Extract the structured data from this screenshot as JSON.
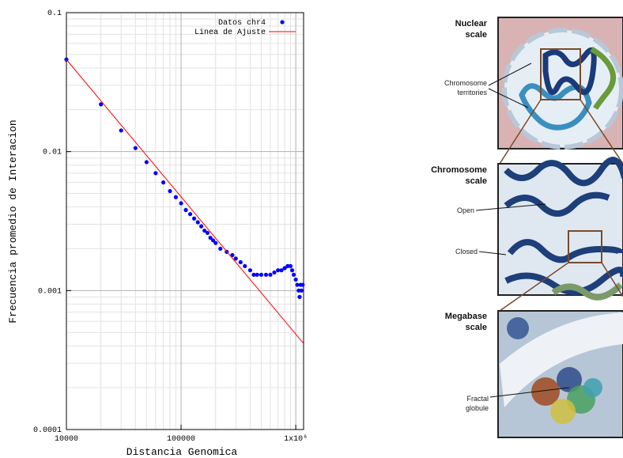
{
  "chart_data": {
    "type": "scatter",
    "x_label": "Distancia Genomica",
    "y_label": "Frecuencia promedio de Interacion",
    "log_x": true,
    "log_y": true,
    "grid": true,
    "legend": "upper right",
    "xlim": [
      10000,
      1170000
    ],
    "ylim": [
      0.0001,
      0.1
    ],
    "xticks": [
      10000,
      100000,
      {
        "value": 1000000,
        "label": "1x10⁶"
      }
    ],
    "yticks": [
      0.0001,
      0.001,
      0.01,
      0.1
    ],
    "xminorticks": [
      20000,
      30000,
      40000,
      50000,
      60000,
      70000,
      80000,
      90000,
      200000,
      300000,
      400000,
      500000,
      600000,
      700000,
      800000,
      900000
    ],
    "yminorticks": [
      0.0002,
      0.0003,
      0.0004,
      0.0005,
      0.0006,
      0.0007,
      0.0008,
      0.0009,
      0.002,
      0.003,
      0.004,
      0.005,
      0.006,
      0.007,
      0.008,
      0.009,
      0.02,
      0.03,
      0.04,
      0.05,
      0.06,
      0.07,
      0.08,
      0.09
    ],
    "series": [
      {
        "name": "Datos chr4",
        "color": "#0000ff",
        "mode": "markers",
        "x": [
          10000,
          20000,
          30000,
          40000,
          50000,
          60000,
          70000,
          80000,
          90000,
          100000,
          110000,
          120000,
          130000,
          140000,
          150000,
          160000,
          170000,
          180000,
          190000,
          200000,
          220000,
          250000,
          280000,
          300000,
          330000,
          360000,
          400000,
          430000,
          460000,
          500000,
          550000,
          600000,
          650000,
          700000,
          750000,
          800000,
          850000,
          900000,
          930000,
          960000,
          1000000,
          1030000,
          1060000,
          1080000,
          1100000,
          1120000,
          1150000
        ],
        "values": [
          0.046,
          0.0219,
          0.0142,
          0.0106,
          0.0084,
          0.007,
          0.006,
          0.0052,
          0.0047,
          0.00425,
          0.0038,
          0.00355,
          0.0033,
          0.0031,
          0.0029,
          0.0027,
          0.0026,
          0.0024,
          0.0023,
          0.0022,
          0.002,
          0.0019,
          0.0018,
          0.0017,
          0.0016,
          0.0015,
          0.0014,
          0.0013,
          0.0013,
          0.0013,
          0.0013,
          0.0013,
          0.00135,
          0.0014,
          0.0014,
          0.00145,
          0.0015,
          0.0015,
          0.0014,
          0.0013,
          0.0012,
          0.0011,
          0.001,
          0.0009,
          0.0011,
          0.001,
          0.0011
        ]
      },
      {
        "name": "Linea de Ajuste",
        "color": "#ff0000",
        "mode": "line",
        "x": [
          10000,
          1170000
        ],
        "values": [
          0.046,
          0.000416
        ]
      }
    ]
  },
  "diagram": {
    "panels": [
      {
        "title": [
          "Nuclear",
          "scale"
        ],
        "labels": [
          [
            "Chromosome",
            "territories"
          ]
        ]
      },
      {
        "title": [
          "Chromosome",
          "scale"
        ],
        "labels": [
          [
            "Open"
          ],
          [
            "Closed"
          ]
        ]
      },
      {
        "title": [
          "Megabase",
          "scale"
        ],
        "labels": [
          [
            "Fractal",
            "globule"
          ]
        ]
      }
    ]
  }
}
